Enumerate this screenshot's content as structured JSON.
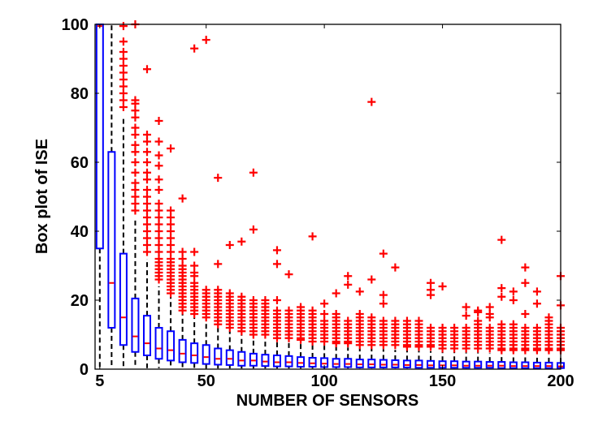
{
  "chart_data": {
    "type": "box",
    "title": "",
    "xlabel": "NUMBER OF SENSORS",
    "ylabel": "Box plot of ISE",
    "xlim": [
      3,
      200
    ],
    "ylim": [
      0,
      100
    ],
    "x_ticks": [
      5,
      50,
      100,
      150,
      200
    ],
    "y_ticks": [
      0,
      20,
      40,
      60,
      80,
      100
    ],
    "grid": false,
    "colors": {
      "box": "#0000ff",
      "median": "#ff0000",
      "whisker": "#000000",
      "outlier": "#ff0000"
    },
    "boxes": [
      {
        "x": 5,
        "q1": 35.0,
        "median": 99.5,
        "q3": 100.0,
        "whisker_low": 0.3,
        "whisker_high": 100.0,
        "outliers": []
      },
      {
        "x": 10,
        "q1": 12.0,
        "median": 25.0,
        "q3": 63.0,
        "whisker_low": 0.3,
        "whisker_high": 100.0,
        "outliers": []
      },
      {
        "x": 15,
        "q1": 7.0,
        "median": 15.0,
        "q3": 33.5,
        "whisker_low": 0.3,
        "whisker_high": 73.0,
        "outliers": [
          76,
          78,
          80,
          82,
          84,
          86,
          88,
          90,
          92,
          95,
          99.5
        ]
      },
      {
        "x": 20,
        "q1": 5.0,
        "median": 9.5,
        "q3": 20.5,
        "whisker_low": 0.3,
        "whisker_high": 44.0,
        "outliers": [
          46,
          48,
          50,
          52,
          54,
          57,
          60,
          63,
          65,
          68,
          70,
          73,
          75,
          77,
          78,
          100
        ]
      },
      {
        "x": 25,
        "q1": 4.0,
        "median": 7.5,
        "q3": 15.5,
        "whisker_low": 0.3,
        "whisker_high": 32.0,
        "outliers": [
          34,
          36,
          38,
          40,
          42,
          44,
          46,
          48,
          50,
          52,
          55,
          57,
          60,
          63,
          66,
          68,
          87
        ]
      },
      {
        "x": 30,
        "q1": 3.0,
        "median": 6.0,
        "q3": 12.0,
        "whisker_low": 0.3,
        "whisker_high": 24.0,
        "outliers": [
          26,
          27,
          28,
          29,
          30,
          31,
          32,
          34,
          36,
          38,
          40,
          42,
          44,
          46,
          48,
          52,
          55,
          59,
          62,
          66,
          72
        ]
      },
      {
        "x": 35,
        "q1": 2.5,
        "median": 5.5,
        "q3": 11.0,
        "whisker_low": 0.3,
        "whisker_high": 21.0,
        "outliers": [
          22,
          23,
          24,
          25,
          26,
          27,
          28,
          29,
          30,
          31,
          32,
          34,
          36,
          38,
          40,
          42,
          44,
          46,
          64
        ]
      },
      {
        "x": 40,
        "q1": 2.0,
        "median": 4.5,
        "q3": 8.5,
        "whisker_low": 0.3,
        "whisker_high": 16.0,
        "outliers": [
          17,
          18,
          19,
          20,
          21,
          22,
          23,
          24,
          25,
          26,
          27,
          28,
          29,
          30,
          32,
          34,
          49.5
        ]
      },
      {
        "x": 45,
        "q1": 1.8,
        "median": 4.0,
        "q3": 7.5,
        "whisker_low": 0.2,
        "whisker_high": 15.0,
        "outliers": [
          16,
          17,
          18,
          19,
          20,
          21,
          22,
          23,
          24,
          25,
          27,
          28,
          30,
          34,
          93
        ]
      },
      {
        "x": 50,
        "q1": 1.5,
        "median": 3.5,
        "q3": 7.0,
        "whisker_low": 0.2,
        "whisker_high": 14.0,
        "outliers": [
          15,
          16,
          17,
          18,
          19,
          20,
          21,
          22,
          23,
          95.5
        ]
      },
      {
        "x": 55,
        "q1": 1.3,
        "median": 3.0,
        "q3": 6.0,
        "whisker_low": 0.2,
        "whisker_high": 12.0,
        "outliers": [
          13,
          14,
          15,
          16,
          17,
          18,
          19,
          20,
          21,
          22,
          23,
          30.5,
          55.5
        ]
      },
      {
        "x": 60,
        "q1": 1.2,
        "median": 3.0,
        "q3": 5.5,
        "whisker_low": 0.2,
        "whisker_high": 11.0,
        "outliers": [
          12,
          13,
          14,
          15,
          16,
          17,
          18,
          19,
          20,
          21,
          22,
          36
        ]
      },
      {
        "x": 65,
        "q1": 1.0,
        "median": 2.5,
        "q3": 5.0,
        "whisker_low": 0.2,
        "whisker_high": 10.0,
        "outliers": [
          11,
          12,
          13,
          14,
          15,
          16,
          17,
          18,
          19,
          20,
          21,
          37
        ]
      },
      {
        "x": 70,
        "q1": 1.0,
        "median": 2.5,
        "q3": 4.5,
        "whisker_low": 0.2,
        "whisker_high": 9.5,
        "outliers": [
          10,
          11,
          12,
          13,
          14,
          15,
          16,
          17,
          18,
          19,
          20,
          40.5,
          57
        ]
      },
      {
        "x": 75,
        "q1": 0.9,
        "median": 2.2,
        "q3": 4.2,
        "whisker_low": 0.2,
        "whisker_high": 9.0,
        "outliers": [
          10,
          11,
          12,
          13,
          14,
          15,
          16,
          17,
          18,
          19,
          20
        ]
      },
      {
        "x": 80,
        "q1": 0.8,
        "median": 2.0,
        "q3": 4.0,
        "whisker_low": 0.2,
        "whisker_high": 8.5,
        "outliers": [
          9,
          10,
          11,
          12,
          13,
          14,
          15,
          16,
          17,
          20,
          30.5,
          34.5
        ]
      },
      {
        "x": 85,
        "q1": 0.8,
        "median": 2.0,
        "q3": 3.8,
        "whisker_low": 0.2,
        "whisker_high": 8.0,
        "outliers": [
          9,
          10,
          11,
          12,
          13,
          14,
          15,
          16,
          17,
          27.5
        ]
      },
      {
        "x": 90,
        "q1": 0.7,
        "median": 1.8,
        "q3": 3.5,
        "whisker_low": 0.2,
        "whisker_high": 7.5,
        "outliers": [
          8.5,
          9,
          10,
          11,
          12,
          13,
          14,
          15,
          16,
          17,
          18
        ]
      },
      {
        "x": 95,
        "q1": 0.7,
        "median": 1.7,
        "q3": 3.3,
        "whisker_low": 0.2,
        "whisker_high": 7.0,
        "outliers": [
          8,
          9,
          10,
          11,
          12,
          13,
          14,
          15,
          16,
          17,
          38.5
        ]
      },
      {
        "x": 100,
        "q1": 0.6,
        "median": 1.6,
        "q3": 3.2,
        "whisker_low": 0.2,
        "whisker_high": 6.8,
        "outliers": [
          8,
          9,
          10,
          11,
          12,
          13,
          14,
          16,
          19
        ]
      },
      {
        "x": 105,
        "q1": 0.6,
        "median": 1.5,
        "q3": 3.0,
        "whisker_low": 0.2,
        "whisker_high": 6.5,
        "outliers": [
          7.5,
          8,
          9,
          10,
          11,
          12,
          13,
          14,
          15,
          16,
          22
        ]
      },
      {
        "x": 110,
        "q1": 0.6,
        "median": 1.5,
        "q3": 3.0,
        "whisker_low": 0.2,
        "whisker_high": 6.3,
        "outliers": [
          7.5,
          8,
          9,
          10,
          11,
          12,
          13,
          14,
          24.5,
          27
        ]
      },
      {
        "x": 115,
        "q1": 0.5,
        "median": 1.4,
        "q3": 2.8,
        "whisker_low": 0.2,
        "whisker_high": 6.0,
        "outliers": [
          7,
          8,
          9,
          10,
          11,
          12,
          13,
          14,
          15,
          16,
          22.5
        ]
      },
      {
        "x": 120,
        "q1": 0.5,
        "median": 1.4,
        "q3": 2.8,
        "whisker_low": 0.2,
        "whisker_high": 6.0,
        "outliers": [
          7,
          8,
          9,
          10,
          11,
          12,
          13,
          14,
          15,
          26,
          77.5
        ]
      },
      {
        "x": 125,
        "q1": 0.5,
        "median": 1.3,
        "q3": 2.7,
        "whisker_low": 0.2,
        "whisker_high": 5.8,
        "outliers": [
          7,
          8,
          9,
          10,
          11,
          12,
          13,
          14,
          19,
          21.5,
          33.5
        ]
      },
      {
        "x": 130,
        "q1": 0.5,
        "median": 1.3,
        "q3": 2.6,
        "whisker_low": 0.2,
        "whisker_high": 5.6,
        "outliers": [
          7,
          8,
          9,
          10,
          11,
          12,
          13,
          14,
          29.5
        ]
      },
      {
        "x": 135,
        "q1": 0.5,
        "median": 1.2,
        "q3": 2.5,
        "whisker_low": 0.2,
        "whisker_high": 5.5,
        "outliers": [
          6.5,
          7,
          8,
          9,
          10,
          11,
          12,
          13,
          14
        ]
      },
      {
        "x": 140,
        "q1": 0.4,
        "median": 1.2,
        "q3": 2.5,
        "whisker_low": 0.2,
        "whisker_high": 5.3,
        "outliers": [
          6.5,
          7,
          8,
          9,
          10,
          11,
          12,
          13,
          14
        ]
      },
      {
        "x": 145,
        "q1": 0.4,
        "median": 1.1,
        "q3": 2.4,
        "whisker_low": 0.2,
        "whisker_high": 5.2,
        "outliers": [
          6.5,
          7,
          8,
          9,
          10,
          11,
          12,
          21.5,
          23,
          25
        ]
      },
      {
        "x": 150,
        "q1": 0.4,
        "median": 1.1,
        "q3": 2.3,
        "whisker_low": 0.2,
        "whisker_high": 5.0,
        "outliers": [
          6,
          7,
          8,
          9,
          10,
          11,
          12,
          24
        ]
      },
      {
        "x": 155,
        "q1": 0.4,
        "median": 1.1,
        "q3": 2.3,
        "whisker_low": 0.2,
        "whisker_high": 5.0,
        "outliers": [
          6,
          7,
          8,
          9,
          10,
          11,
          12
        ]
      },
      {
        "x": 160,
        "q1": 0.4,
        "median": 1.0,
        "q3": 2.2,
        "whisker_low": 0.2,
        "whisker_high": 4.8,
        "outliers": [
          6,
          7,
          8,
          9,
          10,
          11,
          12,
          15.5,
          18
        ]
      },
      {
        "x": 165,
        "q1": 0.4,
        "median": 1.0,
        "q3": 2.2,
        "whisker_low": 0.2,
        "whisker_high": 4.8,
        "outliers": [
          6,
          7,
          8,
          9,
          10,
          11,
          12,
          13,
          14,
          16.5,
          17
        ]
      },
      {
        "x": 170,
        "q1": 0.4,
        "median": 1.0,
        "q3": 2.1,
        "whisker_low": 0.2,
        "whisker_high": 4.6,
        "outliers": [
          6,
          7,
          8,
          9,
          10,
          11,
          12,
          15,
          16,
          18
        ]
      },
      {
        "x": 175,
        "q1": 0.3,
        "median": 1.0,
        "q3": 2.1,
        "whisker_low": 0.2,
        "whisker_high": 4.5,
        "outliers": [
          5.5,
          6,
          7,
          8,
          9,
          10,
          11,
          12,
          13,
          21,
          23.5,
          37.5
        ]
      },
      {
        "x": 180,
        "q1": 0.3,
        "median": 0.9,
        "q3": 2.0,
        "whisker_low": 0.2,
        "whisker_high": 4.4,
        "outliers": [
          5.5,
          6,
          7,
          8,
          9,
          10,
          11,
          12,
          13,
          20,
          22.5
        ]
      },
      {
        "x": 185,
        "q1": 0.3,
        "median": 0.9,
        "q3": 2.0,
        "whisker_low": 0.2,
        "whisker_high": 4.3,
        "outliers": [
          5.5,
          6,
          7,
          8,
          9,
          10,
          11,
          12,
          16,
          25,
          29.5
        ]
      },
      {
        "x": 190,
        "q1": 0.3,
        "median": 0.9,
        "q3": 1.9,
        "whisker_low": 0.2,
        "whisker_high": 4.2,
        "outliers": [
          5.5,
          6,
          7,
          8,
          9,
          10,
          11,
          12,
          19,
          22.5
        ]
      },
      {
        "x": 195,
        "q1": 0.3,
        "median": 0.9,
        "q3": 1.9,
        "whisker_low": 0.2,
        "whisker_high": 4.1,
        "outliers": [
          5.5,
          6,
          7,
          8,
          9,
          10,
          11,
          12,
          13,
          14,
          15
        ]
      },
      {
        "x": 200,
        "q1": 0.3,
        "median": 0.8,
        "q3": 1.8,
        "whisker_low": 0.2,
        "whisker_high": 4.0,
        "outliers": [
          5.5,
          6,
          7,
          8,
          9,
          10,
          11,
          12,
          18.5,
          27
        ]
      }
    ]
  }
}
